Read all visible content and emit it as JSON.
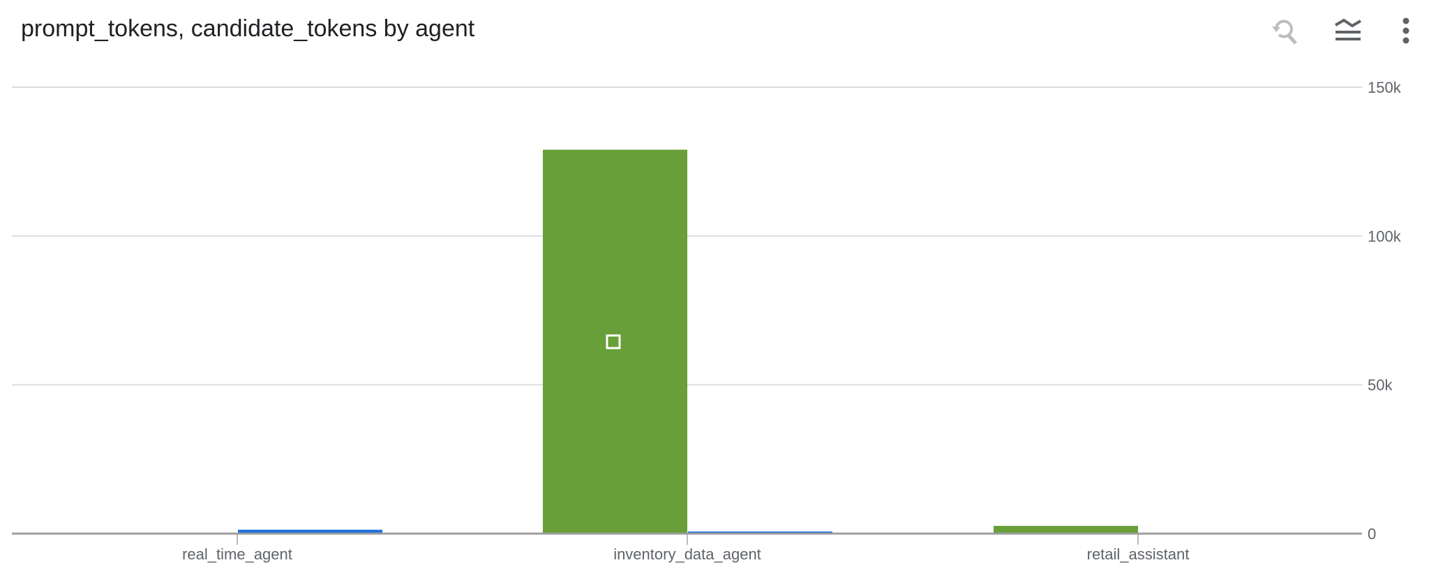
{
  "header": {
    "title": "prompt_tokens, candidate_tokens by agent",
    "icons": [
      "reset-zoom-icon",
      "legend-toggle-icon",
      "more-vert-icon"
    ]
  },
  "chart_data": {
    "type": "bar",
    "title": "prompt_tokens, candidate_tokens by agent",
    "categories": [
      "real_time_agent",
      "inventory_data_agent",
      "retail_assistant"
    ],
    "series": [
      {
        "values": [
          0,
          129000,
          2600
        ],
        "color": "#689f38"
      },
      {
        "values": [
          1300,
          700,
          0
        ],
        "color": "#1a6fe0"
      }
    ],
    "ylim": [
      0,
      150000
    ],
    "yticks": [
      0,
      50000,
      100000,
      150000
    ],
    "ytick_labels": [
      "0",
      "50k",
      "100k",
      "150k"
    ],
    "y_axis_side": "right",
    "grid": true,
    "legend": "none"
  }
}
